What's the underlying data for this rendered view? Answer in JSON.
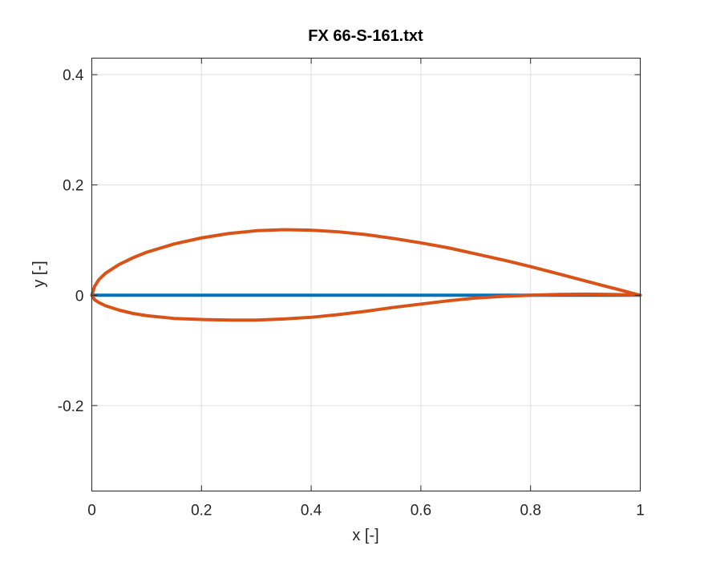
{
  "chart_data": {
    "type": "line",
    "title": "FX 66-S-161.txt",
    "xlabel": "x [-]",
    "ylabel": "y [-]",
    "xlim": [
      0,
      1
    ],
    "ylim": [
      -0.355,
      0.43
    ],
    "xticks": [
      0,
      0.2,
      0.4,
      0.6,
      0.8,
      1
    ],
    "xtick_labels": [
      "0",
      "0.2",
      "0.4",
      "0.6",
      "0.8",
      "1"
    ],
    "yticks": [
      -0.2,
      0,
      0.2,
      0.4
    ],
    "ytick_labels": [
      "-0.2",
      "0",
      "0.2",
      "0.4"
    ],
    "grid": true,
    "series": [
      {
        "color": "#0072bd",
        "x": [
          0,
          1
        ],
        "y": [
          0,
          0
        ]
      },
      {
        "color": "#d95319",
        "x": [
          1.0,
          0.95,
          0.9,
          0.85,
          0.8,
          0.75,
          0.7,
          0.65,
          0.6,
          0.55,
          0.5,
          0.45,
          0.4,
          0.35,
          0.3,
          0.25,
          0.2,
          0.15,
          0.1,
          0.075,
          0.05,
          0.025,
          0.0125,
          0.005,
          0.0,
          0.005,
          0.0125,
          0.025,
          0.05,
          0.075,
          0.1,
          0.15,
          0.2,
          0.25,
          0.3,
          0.35,
          0.4,
          0.45,
          0.5,
          0.55,
          0.6,
          0.65,
          0.7,
          0.75,
          0.8,
          0.85,
          0.9,
          0.95,
          1.0
        ],
        "y": [
          0.0,
          0.013,
          0.026,
          0.039,
          0.052,
          0.064,
          0.075,
          0.086,
          0.095,
          0.103,
          0.11,
          0.115,
          0.118,
          0.119,
          0.117,
          0.112,
          0.104,
          0.093,
          0.078,
          0.068,
          0.056,
          0.04,
          0.028,
          0.016,
          0.0,
          -0.008,
          -0.013,
          -0.019,
          -0.027,
          -0.033,
          -0.037,
          -0.042,
          -0.044,
          -0.045,
          -0.045,
          -0.043,
          -0.04,
          -0.035,
          -0.029,
          -0.022,
          -0.016,
          -0.01,
          -0.005,
          -0.002,
          0.0,
          0.0015,
          0.002,
          0.0015,
          0.0
        ]
      }
    ]
  },
  "colors": {
    "axes": "#262626",
    "grid": "#dfdfdf",
    "background": "#ffffff"
  }
}
